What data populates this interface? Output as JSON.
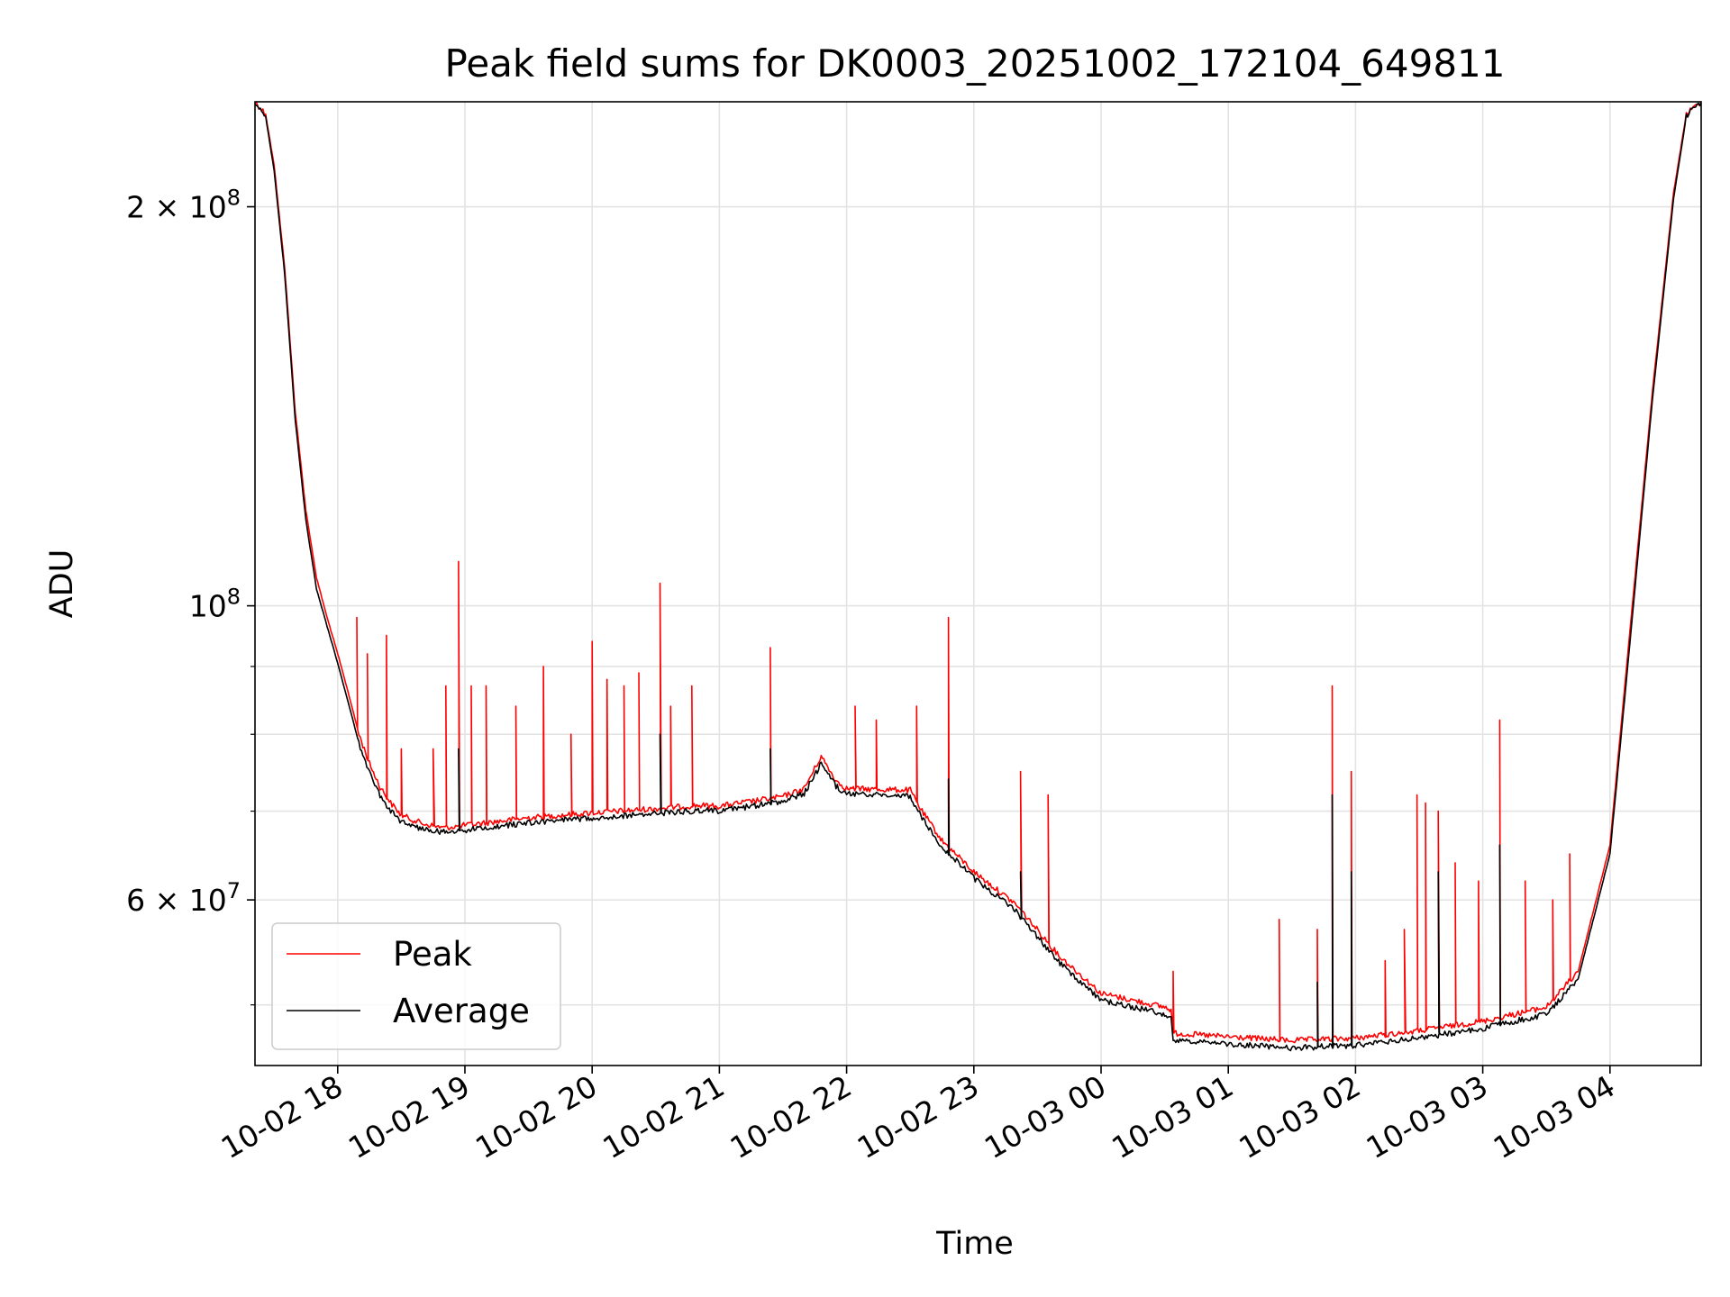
{
  "chart_data": {
    "type": "line",
    "title": "Peak field sums for DK0003_20251002_172104_649811",
    "xlabel": "Time",
    "ylabel": "ADU",
    "yscale": "log",
    "ylim": [
      45000000,
      240000000
    ],
    "xlim": [
      "2025-10-02 17:21",
      "2025-10-03 04:43"
    ],
    "grid": true,
    "legend": "lower-left",
    "x_ticks": [
      {
        "value": "2025-10-02 18:00",
        "label": "10-02 18"
      },
      {
        "value": "2025-10-02 19:00",
        "label": "10-02 19"
      },
      {
        "value": "2025-10-02 20:00",
        "label": "10-02 20"
      },
      {
        "value": "2025-10-02 21:00",
        "label": "10-02 21"
      },
      {
        "value": "2025-10-02 22:00",
        "label": "10-02 22"
      },
      {
        "value": "2025-10-02 23:00",
        "label": "10-02 23"
      },
      {
        "value": "2025-10-03 00:00",
        "label": "10-03 00"
      },
      {
        "value": "2025-10-03 01:00",
        "label": "10-03 01"
      },
      {
        "value": "2025-10-03 02:00",
        "label": "10-03 02"
      },
      {
        "value": "2025-10-03 03:00",
        "label": "10-03 03"
      },
      {
        "value": "2025-10-03 04:00",
        "label": "10-03 04"
      }
    ],
    "y_ticks_major": [
      {
        "value": 200000000,
        "base": "2 × 10",
        "exp": "8"
      },
      {
        "value": 100000000,
        "base": "10",
        "exp": "8"
      },
      {
        "value": 60000000,
        "base": "6 × 10",
        "exp": "7"
      }
    ],
    "y_ticks_minor": [
      50000000,
      70000000,
      80000000,
      90000000
    ],
    "series": [
      {
        "name": "Peak",
        "color": "#ff0000",
        "points": [
          [
            "2025-10-02 17:21",
            240000000
          ],
          [
            "2025-10-02 17:26",
            235000000
          ],
          [
            "2025-10-02 17:30",
            215000000
          ],
          [
            "2025-10-02 17:35",
            180000000
          ],
          [
            "2025-10-02 17:40",
            140000000
          ],
          [
            "2025-10-02 17:45",
            118000000
          ],
          [
            "2025-10-02 17:50",
            105000000
          ],
          [
            "2025-10-02 17:55",
            98000000
          ],
          [
            "2025-10-02 18:00",
            92000000
          ],
          [
            "2025-10-02 18:05",
            86000000
          ],
          [
            "2025-10-02 18:10",
            80000000
          ],
          [
            "2025-10-02 18:15",
            76000000
          ],
          [
            "2025-10-02 18:20",
            73000000
          ],
          [
            "2025-10-02 18:25",
            71000000
          ],
          [
            "2025-10-02 18:30",
            69500000
          ],
          [
            "2025-10-02 18:40",
            68500000
          ],
          [
            "2025-10-02 18:50",
            68000000
          ],
          [
            "2025-10-02 19:00",
            68300000
          ],
          [
            "2025-10-02 19:30",
            69200000
          ],
          [
            "2025-10-02 20:00",
            69800000
          ],
          [
            "2025-10-02 20:30",
            70300000
          ],
          [
            "2025-10-02 20:50",
            70700000
          ],
          [
            "2025-10-02 21:00",
            70600000
          ],
          [
            "2025-10-02 21:30",
            71800000
          ],
          [
            "2025-10-02 21:40",
            72800000
          ],
          [
            "2025-10-02 21:48",
            77000000
          ],
          [
            "2025-10-02 21:55",
            73800000
          ],
          [
            "2025-10-02 22:00",
            72800000
          ],
          [
            "2025-10-02 22:30",
            72600000
          ],
          [
            "2025-10-02 22:35",
            70200000
          ],
          [
            "2025-10-02 22:45",
            66500000
          ],
          [
            "2025-10-02 23:00",
            63000000
          ],
          [
            "2025-10-02 23:20",
            59500000
          ],
          [
            "2025-10-02 23:40",
            54500000
          ],
          [
            "2025-10-03 00:00",
            51000000
          ],
          [
            "2025-10-03 00:30",
            49800000
          ],
          [
            "2025-10-03 00:33",
            49600000
          ],
          [
            "2025-10-03 00:34",
            47600000
          ],
          [
            "2025-10-03 01:00",
            47300000
          ],
          [
            "2025-10-03 01:30",
            47000000
          ],
          [
            "2025-10-03 02:00",
            47200000
          ],
          [
            "2025-10-03 02:30",
            47800000
          ],
          [
            "2025-10-03 03:00",
            48600000
          ],
          [
            "2025-10-03 03:30",
            49800000
          ],
          [
            "2025-10-03 03:45",
            53000000
          ],
          [
            "2025-10-03 04:00",
            66000000
          ],
          [
            "2025-10-03 04:10",
            98000000
          ],
          [
            "2025-10-03 04:20",
            145000000
          ],
          [
            "2025-10-03 04:30",
            205000000
          ],
          [
            "2025-10-03 04:36",
            235000000
          ],
          [
            "2025-10-03 04:43",
            240000000
          ]
        ],
        "spikes": [
          [
            "2025-10-02 18:09",
            98000000
          ],
          [
            "2025-10-02 18:14",
            92000000
          ],
          [
            "2025-10-02 18:23",
            95000000
          ],
          [
            "2025-10-02 18:30",
            78000000
          ],
          [
            "2025-10-02 18:45",
            78000000
          ],
          [
            "2025-10-02 18:51",
            87000000
          ],
          [
            "2025-10-02 18:57",
            108000000
          ],
          [
            "2025-10-02 19:03",
            87000000
          ],
          [
            "2025-10-02 19:10",
            87000000
          ],
          [
            "2025-10-02 19:24",
            84000000
          ],
          [
            "2025-10-02 19:37",
            90000000
          ],
          [
            "2025-10-02 19:50",
            80000000
          ],
          [
            "2025-10-02 20:00",
            94000000
          ],
          [
            "2025-10-02 20:07",
            88000000
          ],
          [
            "2025-10-02 20:15",
            87000000
          ],
          [
            "2025-10-02 20:22",
            89000000
          ],
          [
            "2025-10-02 20:32",
            104000000
          ],
          [
            "2025-10-02 20:37",
            84000000
          ],
          [
            "2025-10-02 20:47",
            87000000
          ],
          [
            "2025-10-02 21:24",
            93000000
          ],
          [
            "2025-10-02 22:04",
            84000000
          ],
          [
            "2025-10-02 22:14",
            82000000
          ],
          [
            "2025-10-02 22:33",
            84000000
          ],
          [
            "2025-10-02 22:48",
            98000000
          ],
          [
            "2025-10-02 23:22",
            75000000
          ],
          [
            "2025-10-02 23:35",
            72000000
          ],
          [
            "2025-10-03 00:34",
            53000000
          ],
          [
            "2025-10-03 01:24",
            58000000
          ],
          [
            "2025-10-03 01:42",
            57000000
          ],
          [
            "2025-10-03 01:49",
            87000000
          ],
          [
            "2025-10-03 01:58",
            75000000
          ],
          [
            "2025-10-03 02:14",
            54000000
          ],
          [
            "2025-10-03 02:23",
            57000000
          ],
          [
            "2025-10-03 02:29",
            72000000
          ],
          [
            "2025-10-03 02:33",
            71000000
          ],
          [
            "2025-10-03 02:39",
            70000000
          ],
          [
            "2025-10-03 02:47",
            64000000
          ],
          [
            "2025-10-03 02:58",
            62000000
          ],
          [
            "2025-10-03 03:08",
            82000000
          ],
          [
            "2025-10-03 03:20",
            62000000
          ],
          [
            "2025-10-03 03:33",
            60000000
          ],
          [
            "2025-10-03 03:41",
            65000000
          ]
        ]
      },
      {
        "name": "Average",
        "color": "#000000",
        "points": [
          [
            "2025-10-02 17:21",
            240000000
          ],
          [
            "2025-10-02 17:26",
            234000000
          ],
          [
            "2025-10-02 17:30",
            213000000
          ],
          [
            "2025-10-02 17:35",
            178000000
          ],
          [
            "2025-10-02 17:40",
            138000000
          ],
          [
            "2025-10-02 17:45",
            116000000
          ],
          [
            "2025-10-02 17:50",
            103000000
          ],
          [
            "2025-10-02 17:55",
            96500000
          ],
          [
            "2025-10-02 18:00",
            90500000
          ],
          [
            "2025-10-02 18:05",
            84500000
          ],
          [
            "2025-10-02 18:10",
            78800000
          ],
          [
            "2025-10-02 18:15",
            74800000
          ],
          [
            "2025-10-02 18:20",
            72000000
          ],
          [
            "2025-10-02 18:25",
            70000000
          ],
          [
            "2025-10-02 18:30",
            68700000
          ],
          [
            "2025-10-02 18:40",
            67900000
          ],
          [
            "2025-10-02 18:50",
            67500000
          ],
          [
            "2025-10-02 19:00",
            67700000
          ],
          [
            "2025-10-02 19:30",
            68600000
          ],
          [
            "2025-10-02 20:00",
            69200000
          ],
          [
            "2025-10-02 20:30",
            69700000
          ],
          [
            "2025-10-02 20:50",
            70100000
          ],
          [
            "2025-10-02 21:00",
            70000000
          ],
          [
            "2025-10-02 21:30",
            71200000
          ],
          [
            "2025-10-02 21:40",
            72200000
          ],
          [
            "2025-10-02 21:48",
            76000000
          ],
          [
            "2025-10-02 21:55",
            73100000
          ],
          [
            "2025-10-02 22:00",
            72100000
          ],
          [
            "2025-10-02 22:30",
            71900000
          ],
          [
            "2025-10-02 22:35",
            69400000
          ],
          [
            "2025-10-02 22:45",
            65800000
          ],
          [
            "2025-10-02 23:00",
            62300000
          ],
          [
            "2025-10-02 23:20",
            58800000
          ],
          [
            "2025-10-02 23:40",
            53900000
          ],
          [
            "2025-10-03 00:00",
            50400000
          ],
          [
            "2025-10-03 00:30",
            49200000
          ],
          [
            "2025-10-03 00:33",
            49000000
          ],
          [
            "2025-10-03 00:34",
            47000000
          ],
          [
            "2025-10-03 01:00",
            46700000
          ],
          [
            "2025-10-03 01:30",
            46400000
          ],
          [
            "2025-10-03 02:00",
            46600000
          ],
          [
            "2025-10-03 02:30",
            47200000
          ],
          [
            "2025-10-03 03:00",
            48000000
          ],
          [
            "2025-10-03 03:30",
            49200000
          ],
          [
            "2025-10-03 03:45",
            52300000
          ],
          [
            "2025-10-03 04:00",
            65000000
          ],
          [
            "2025-10-03 04:10",
            96000000
          ],
          [
            "2025-10-03 04:20",
            143000000
          ],
          [
            "2025-10-03 04:30",
            203000000
          ],
          [
            "2025-10-03 04:36",
            234000000
          ],
          [
            "2025-10-03 04:43",
            240000000
          ]
        ],
        "spikes": [
          [
            "2025-10-02 18:57",
            78000000
          ],
          [
            "2025-10-02 20:32",
            80000000
          ],
          [
            "2025-10-02 21:24",
            78000000
          ],
          [
            "2025-10-02 22:48",
            74000000
          ],
          [
            "2025-10-02 23:22",
            63000000
          ],
          [
            "2025-10-03 01:49",
            72000000
          ],
          [
            "2025-10-03 01:58",
            63000000
          ],
          [
            "2025-10-03 01:42",
            52000000
          ],
          [
            "2025-10-03 02:39",
            63000000
          ],
          [
            "2025-10-03 03:08",
            66000000
          ]
        ]
      }
    ]
  }
}
